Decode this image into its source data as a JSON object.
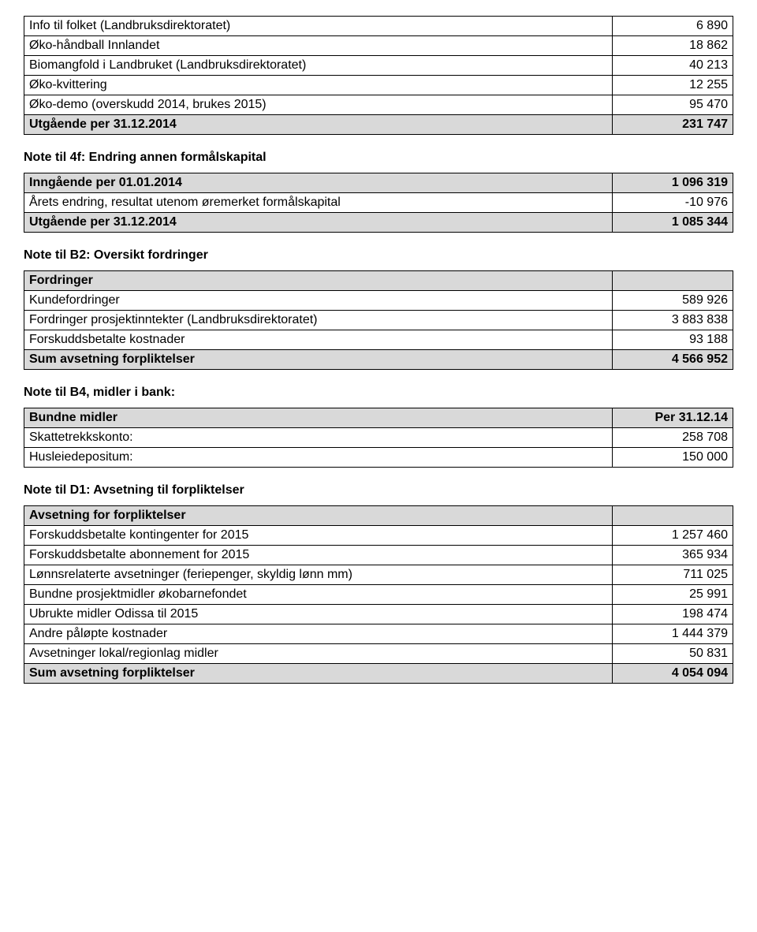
{
  "tableA": {
    "rows": [
      {
        "label": "Info til folket (Landbruksdirektoratet)",
        "value": "6 890"
      },
      {
        "label": "Øko-håndball Innlandet",
        "value": "18 862"
      },
      {
        "label": "Biomangfold i Landbruket (Landbruksdirektoratet)",
        "value": "40 213"
      },
      {
        "label": "Øko-kvittering",
        "value": "12 255"
      },
      {
        "label": "Øko-demo (overskudd 2014, brukes 2015)",
        "value": "95 470"
      }
    ],
    "total": {
      "label": "Utgående per 31.12.2014",
      "value": "231 747"
    }
  },
  "note4f": {
    "heading": "Note til 4f: Endring annen formålskapital",
    "opening": {
      "label": "Inngående per 01.01.2014",
      "value": "1 096 319"
    },
    "rows": [
      {
        "label": "Årets endring, resultat utenom øremerket formålskapital",
        "value": "-10 976"
      }
    ],
    "closing": {
      "label": "Utgående per 31.12.2014",
      "value": "1 085 344"
    }
  },
  "noteB2": {
    "heading": "Note til B2: Oversikt fordringer",
    "header": {
      "label": "Fordringer",
      "value": ""
    },
    "rows": [
      {
        "label": "Kundefordringer",
        "value": "589 926"
      },
      {
        "label": "Fordringer prosjektinntekter (Landbruksdirektoratet)",
        "value": "3 883 838"
      },
      {
        "label": "Forskuddsbetalte kostnader",
        "value": "93 188"
      }
    ],
    "total": {
      "label": "Sum avsetning forpliktelser",
      "value": "4 566 952"
    }
  },
  "noteB4": {
    "heading": "Note til B4, midler i bank:",
    "header": {
      "label": "Bundne midler",
      "value": "Per 31.12.14"
    },
    "rows": [
      {
        "label": "Skattetrekkskonto:",
        "value": "258 708"
      },
      {
        "label": "Husleiedepositum:",
        "value": "150 000"
      }
    ]
  },
  "noteD1": {
    "heading": "Note til D1: Avsetning til forpliktelser",
    "header": {
      "label": "Avsetning for forpliktelser",
      "value": ""
    },
    "rows": [
      {
        "label": "Forskuddsbetalte kontingenter for 2015",
        "value": "1 257 460"
      },
      {
        "label": "Forskuddsbetalte abonnement for 2015",
        "value": "365 934"
      },
      {
        "label": "Lønnsrelaterte avsetninger (feriepenger, skyldig lønn mm)",
        "value": "711 025"
      },
      {
        "label": "Bundne prosjektmidler økobarnefondet",
        "value": "25 991"
      },
      {
        "label": "Ubrukte midler Odissa til 2015",
        "value": "198 474"
      },
      {
        "label": "Andre påløpte kostnader",
        "value": "1 444 379"
      },
      {
        "label": "Avsetninger lokal/regionlag midler",
        "value": "50 831"
      }
    ],
    "total": {
      "label": "Sum avsetning forpliktelser",
      "value": "4 054 094"
    }
  }
}
